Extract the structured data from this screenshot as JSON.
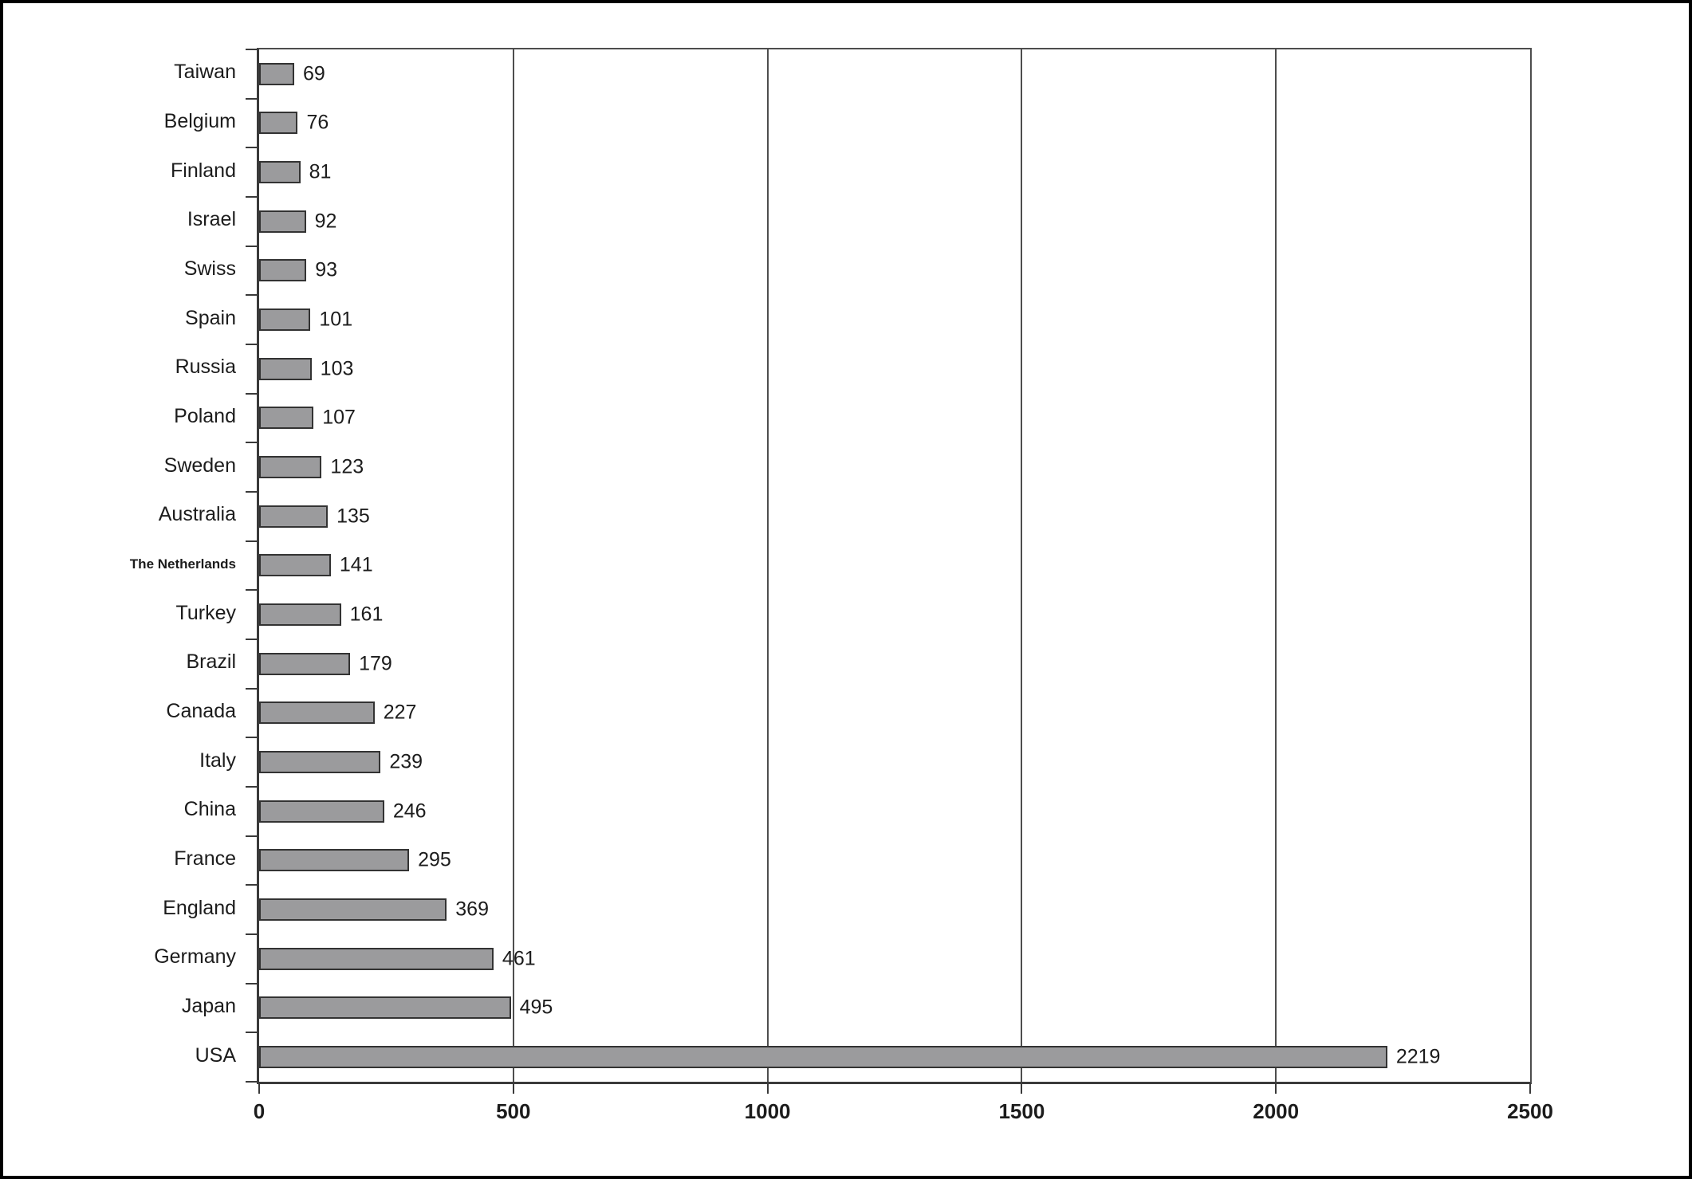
{
  "colors": {
    "background": "#ffffff",
    "frame": "#000000",
    "bar_fill": "#9b9b9d",
    "bar_border": "#333333",
    "axis_line": "#3a3a3a",
    "grid_line": "#4d4d4d",
    "text": "#1c1c1c"
  },
  "chart_data": {
    "type": "bar",
    "orientation": "horizontal",
    "title": "",
    "xlabel": "",
    "ylabel": "",
    "xlim": [
      0,
      2500
    ],
    "x_ticks": [
      0,
      500,
      1000,
      1500,
      2000,
      2500
    ],
    "grid": true,
    "legend": false,
    "value_labels_shown": true,
    "categories": [
      "Taiwan",
      "Belgium",
      "Finland",
      "Israel",
      "Swiss",
      "Spain",
      "Russia",
      "Poland",
      "Sweden",
      "Australia",
      "The Netherlands",
      "Turkey",
      "Brazil",
      "Canada",
      "Italy",
      "China",
      "France",
      "England",
      "Germany",
      "Japan",
      "USA"
    ],
    "values": [
      69,
      76,
      81,
      92,
      93,
      101,
      103,
      107,
      123,
      135,
      141,
      161,
      179,
      227,
      239,
      246,
      295,
      369,
      461,
      495,
      2219
    ]
  }
}
